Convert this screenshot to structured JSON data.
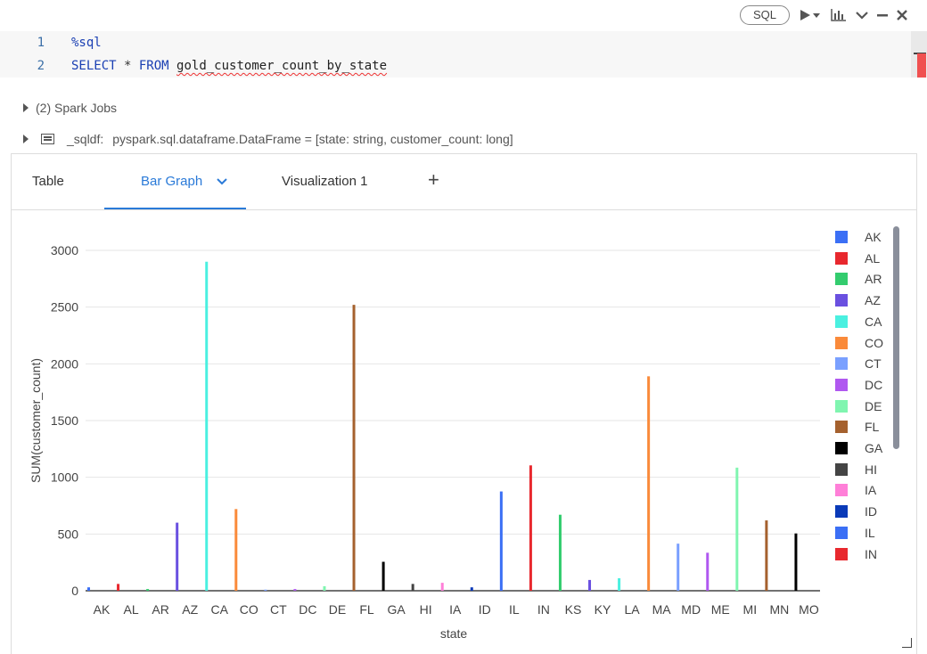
{
  "toolbar": {
    "language": "SQL",
    "icons": [
      "run-icon",
      "chart-icon",
      "chevron-down-icon",
      "minimize-icon",
      "close-icon"
    ]
  },
  "editor": {
    "lines": [
      {
        "num": "1",
        "magic": "%sql"
      },
      {
        "num": "2",
        "kw1": "SELECT",
        "star": " * ",
        "kw2": "FROM",
        "table": "gold_customer_count_by_state"
      }
    ]
  },
  "jobs": {
    "spark_jobs": "(2) Spark Jobs",
    "df_name": "_sqldf:",
    "df_type": "pyspark.sql.dataframe.DataFrame = [state: string, customer_count: long]"
  },
  "tabs": [
    {
      "label": "Table"
    },
    {
      "label": "Bar Graph"
    },
    {
      "label": "Visualization 1"
    }
  ],
  "colors": {
    "accent": "#2a7ad8",
    "palette": [
      "#3b6ff5",
      "#e8282e",
      "#33cc6e",
      "#6a50e0",
      "#4af0e0",
      "#fa8a3a",
      "#7aa0ff",
      "#b058f0",
      "#80f5b0",
      "#a5612e",
      "#000000",
      "#444444",
      "#ff7fd8",
      "#0a3ab8",
      "#3b6ff5",
      "#e8282e",
      "#33cc6e",
      "#6a50e0",
      "#4af0e0",
      "#fa8a3a",
      "#7aa0ff",
      "#b058f0",
      "#80f5b0",
      "#a5612e",
      "#000000"
    ]
  },
  "chart_data": {
    "type": "bar",
    "xlabel": "state",
    "ylabel": "SUM(customer_count)",
    "ylim": [
      0,
      3000
    ],
    "yticks": [
      0,
      500,
      1000,
      1500,
      2000,
      2500,
      3000
    ],
    "grid": true,
    "legend_position": "right",
    "categories": [
      "AK",
      "AL",
      "AR",
      "AZ",
      "CA",
      "CO",
      "CT",
      "DC",
      "DE",
      "FL",
      "GA",
      "HI",
      "IA",
      "ID",
      "IL",
      "IN",
      "KS",
      "KY",
      "LA",
      "MA",
      "MD",
      "ME",
      "MI",
      "MN",
      "MO"
    ],
    "values": [
      30,
      60,
      15,
      600,
      2900,
      720,
      10,
      15,
      40,
      2520,
      255,
      60,
      70,
      30,
      875,
      1105,
      670,
      95,
      110,
      1890,
      415,
      335,
      1085,
      620,
      505
    ],
    "legend": [
      "AK",
      "AL",
      "AR",
      "AZ",
      "CA",
      "CO",
      "CT",
      "DC",
      "DE",
      "FL",
      "GA",
      "HI",
      "IA",
      "ID",
      "IL",
      "IN"
    ]
  }
}
